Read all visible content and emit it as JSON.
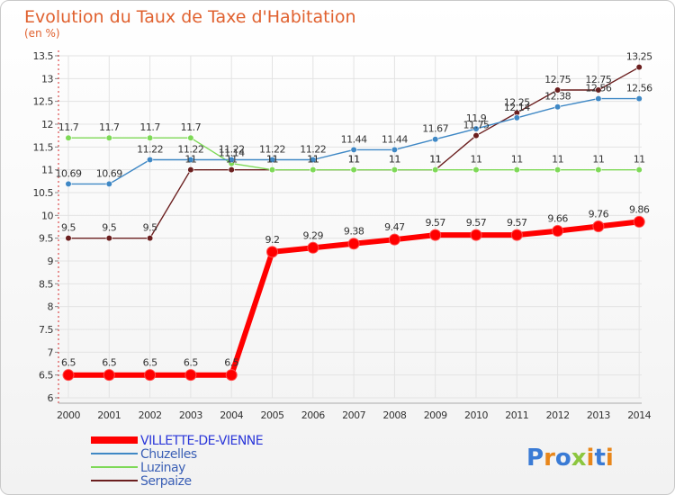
{
  "chart_data": {
    "type": "line",
    "title": "Evolution du Taux de Taxe d'Habitation",
    "subtitle": "(en %)",
    "x": [
      "2000",
      "2001",
      "2002",
      "2003",
      "2004",
      "2005",
      "2006",
      "2007",
      "2008",
      "2009",
      "2010",
      "2011",
      "2012",
      "2013",
      "2014"
    ],
    "ylim": [
      6,
      13.5
    ],
    "yticks": [
      "6",
      "6.5",
      "7",
      "7.5",
      "8",
      "8.5",
      "9",
      "9.5",
      "10",
      "10.5",
      "11",
      "11.5",
      "12",
      "12.5",
      "13",
      "13.5"
    ],
    "grid": true,
    "legend_position": "bottom-left",
    "series": [
      {
        "name": "VILLETTE-DE-VIENNE",
        "color": "#ff0000",
        "values": [
          6.5,
          6.5,
          6.5,
          6.5,
          6.5,
          9.2,
          9.29,
          9.38,
          9.47,
          9.57,
          9.57,
          9.57,
          9.66,
          9.76,
          9.86
        ]
      },
      {
        "name": "Chuzelles",
        "color": "#3f88c5",
        "values": [
          10.69,
          10.69,
          11.22,
          11.22,
          11.22,
          11.22,
          11.22,
          11.44,
          11.44,
          11.67,
          11.9,
          12.14,
          12.38,
          12.56,
          12.56
        ]
      },
      {
        "name": "Luzinay",
        "color": "#7ed957",
        "values": [
          11.7,
          11.7,
          11.7,
          11.7,
          11.14,
          11,
          11,
          11,
          11,
          11,
          11,
          11,
          11,
          11,
          11
        ]
      },
      {
        "name": "Serpaize",
        "color": "#6b1f1f",
        "values": [
          9.5,
          9.5,
          9.5,
          11,
          11,
          11,
          11,
          11,
          11,
          11,
          11.75,
          12.25,
          12.75,
          12.75,
          13.25
        ]
      }
    ],
    "data_labels": [
      [
        "6.5",
        "6.5",
        "6.5",
        "6.5",
        "6.5",
        "9.2",
        "9.29",
        "9.38",
        "9.47",
        "9.57",
        "9.57",
        "9.57",
        "9.66",
        "9.76",
        "9.86"
      ],
      [
        "10.69",
        "10.69",
        "11.22",
        "11.22",
        "11.22",
        "11.22",
        "11.22",
        "11.44",
        "11.44",
        "11.67",
        "11.9",
        "12.14",
        "12.38",
        "12.56",
        "12.56"
      ],
      [
        "11.7",
        "11.7",
        "11.7",
        "11.7",
        "11.14",
        "11",
        "11",
        "11",
        "11",
        "11",
        "11",
        "11",
        "11",
        "11",
        "11"
      ],
      [
        "9.5",
        "9.5",
        "9.5",
        "11",
        "11",
        "11",
        "11",
        "11",
        "11",
        "11",
        "11.75",
        "12.25",
        "12.75",
        "12.75",
        "13.25"
      ]
    ]
  },
  "branding": {
    "logo_text": "Proxiti",
    "letters": [
      "P",
      "r",
      "o",
      "x",
      "i",
      "t",
      "i"
    ],
    "colors": [
      "#3a7bd5",
      "#e8861a",
      "#3a7bd5",
      "#8cc63f",
      "#e8861a",
      "#3a7bd5",
      "#e8861a"
    ]
  }
}
